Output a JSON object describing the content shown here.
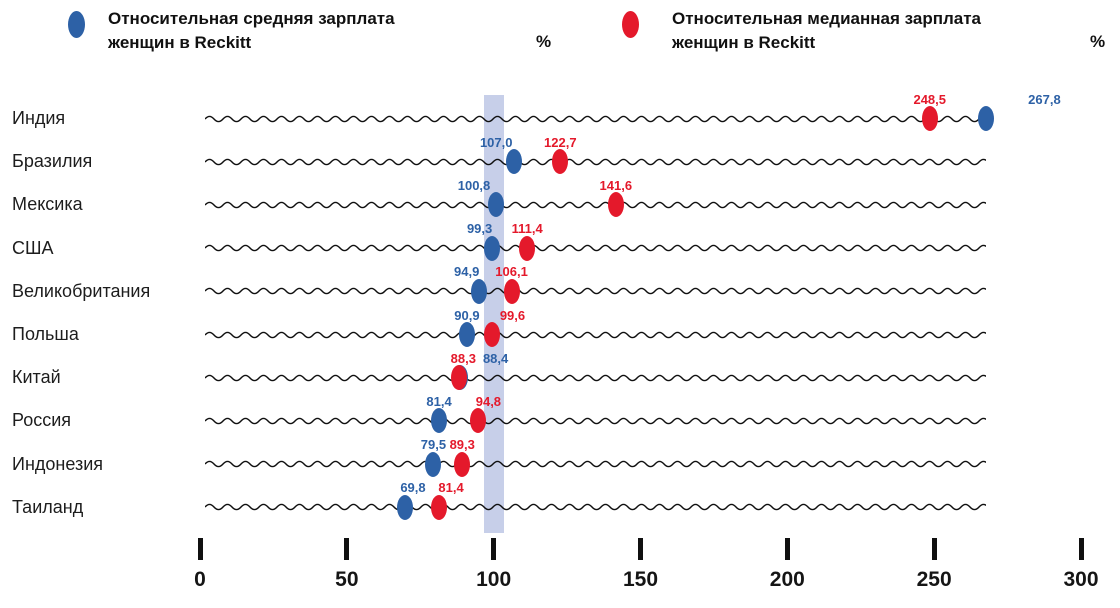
{
  "chart_data": {
    "type": "scatter",
    "subtype": "horizontal-dot-plot",
    "categories": [
      "Индия",
      "Бразилия",
      "Мексика",
      "США",
      "Великобритания",
      "Польша",
      "Китай",
      "Россия",
      "Индонезия",
      "Таиланд"
    ],
    "series": [
      {
        "name": "Относительная средняя зарплата женщин в Reckitt",
        "color": "#2d61a6",
        "values": [
          267.8,
          107.0,
          100.8,
          99.3,
          94.9,
          90.9,
          88.4,
          81.4,
          79.5,
          69.8
        ],
        "labels": [
          "267,8",
          "107,0",
          "100,8",
          "99,3",
          "94,9",
          "90,9",
          "88,4",
          "81,4",
          "79,5",
          "69,8"
        ]
      },
      {
        "name": "Относительная медианная зарплата женщин в Reckitt",
        "color": "#e4192b",
        "values": [
          248.5,
          122.7,
          141.6,
          111.4,
          106.1,
          99.6,
          88.3,
          94.8,
          89.3,
          81.4
        ],
        "labels": [
          "248,5",
          "122,7",
          "141,6",
          "111,4",
          "106,1",
          "99,6",
          "88,3",
          "94,8",
          "89,3",
          "81,4"
        ]
      }
    ],
    "value_unit": "%",
    "x_ticks": [
      0,
      50,
      100,
      150,
      200,
      250,
      300
    ],
    "x_range": [
      0,
      300
    ],
    "reference_band_value": 100,
    "reference_band_color": "#c7cfe9",
    "legend_position": "top",
    "grid": "wavy-row-lines"
  }
}
